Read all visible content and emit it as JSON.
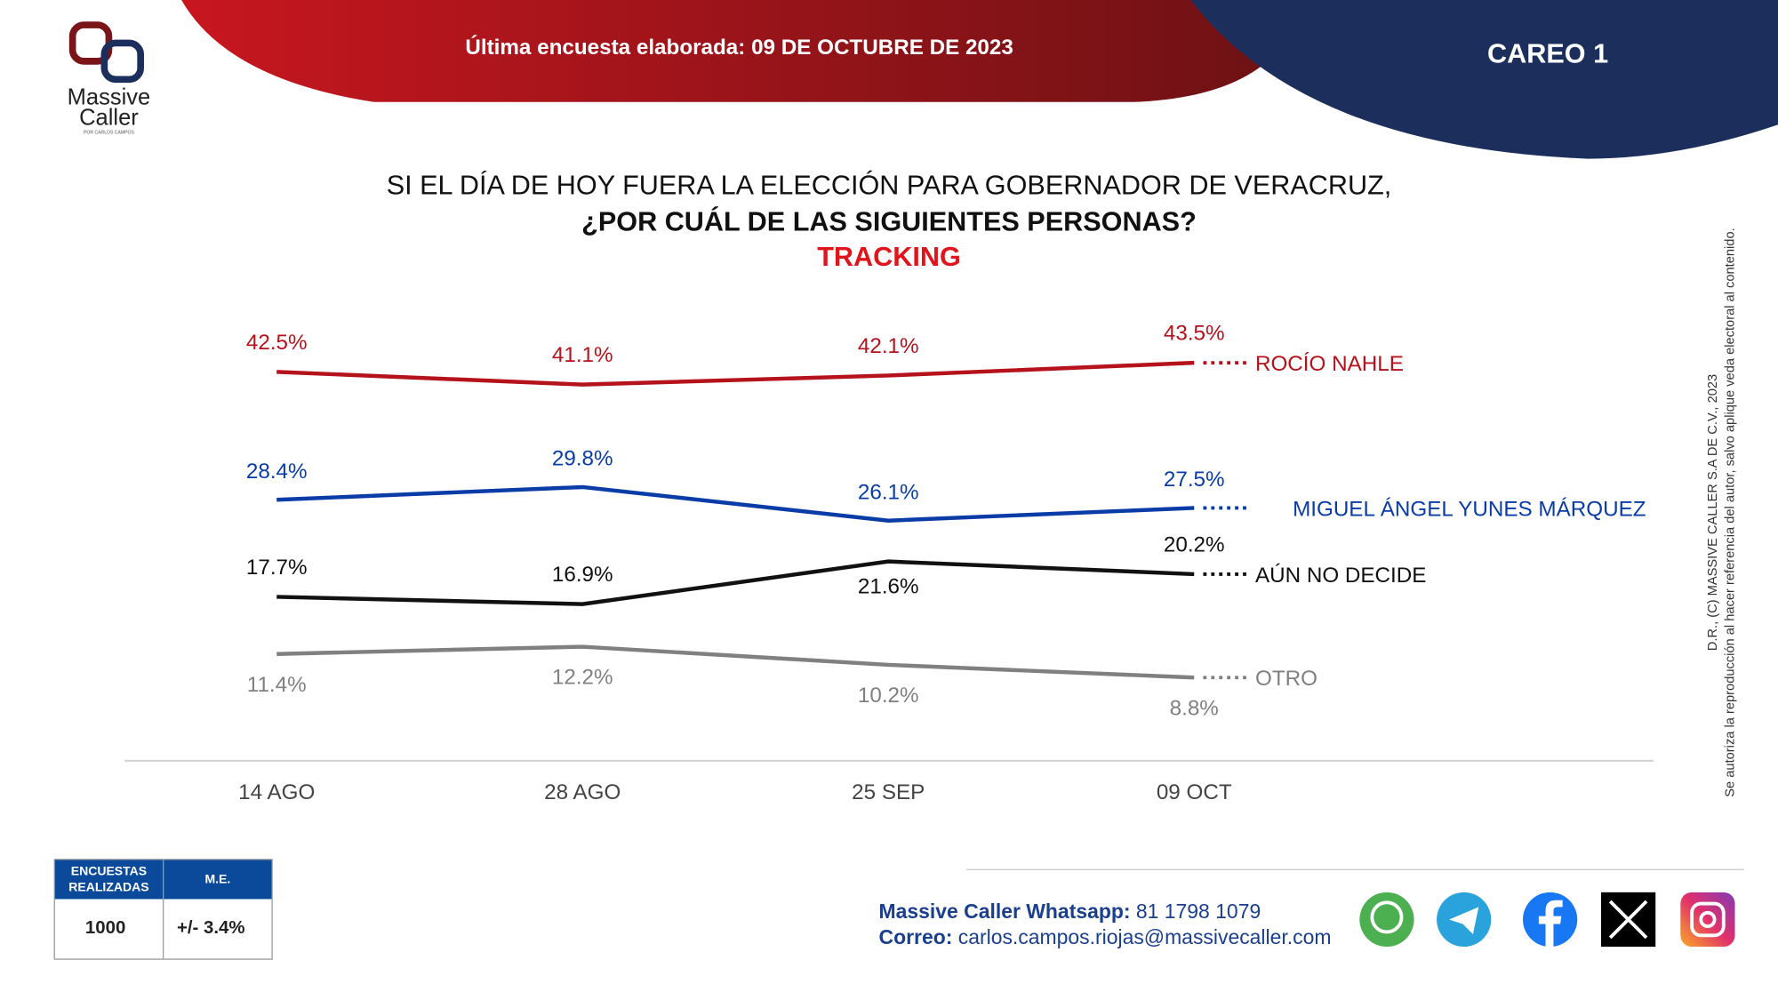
{
  "header": {
    "survey_date": "Última encuesta elaborada: 09 DE OCTUBRE DE 2023",
    "badge": "CAREO 1",
    "logo": [
      "Massive",
      "Caller",
      "POR CARLOS CAMPOS"
    ]
  },
  "chart_data": {
    "type": "line",
    "title": [
      "SI EL DÍA DE HOY FUERA LA ELECCIÓN PARA GOBERNADOR DE VERACRUZ,",
      "¿POR CUÁL DE LAS SIGUIENTES PERSONAS?"
    ],
    "subtitle": "TRACKING",
    "categories": [
      "14 AGO",
      "28 AGO",
      "25 SEP",
      "09 OCT"
    ],
    "ylim": [
      0,
      45
    ],
    "series": [
      {
        "name": "ROCÍO NAHLE",
        "color": "#b5121b",
        "values": [
          42.5,
          41.1,
          42.1,
          43.5
        ],
        "value_labels": [
          "42.5%",
          "41.1%",
          "42.1%",
          "43.5%"
        ]
      },
      {
        "name": "MIGUEL ÁNGEL YUNES MÁRQUEZ",
        "color": "#0a3ca8",
        "values": [
          28.4,
          29.8,
          26.1,
          27.5
        ],
        "value_labels": [
          "28.4%",
          "29.8%",
          "26.1%",
          "27.5%"
        ]
      },
      {
        "name": "AÚN NO DECIDE",
        "color": "#111111",
        "values": [
          17.7,
          16.9,
          21.6,
          20.2
        ],
        "value_labels": [
          "17.7%",
          "16.9%",
          "21.6%",
          "20.2%"
        ]
      },
      {
        "name": "OTRO",
        "color": "#808080",
        "values": [
          11.4,
          12.2,
          10.2,
          8.8
        ],
        "value_labels": [
          "11.4%",
          "12.2%",
          "10.2%",
          "8.8%"
        ]
      }
    ]
  },
  "table": {
    "headers": [
      [
        "ENCUESTAS",
        "REALIZADAS"
      ],
      "M.E."
    ],
    "rows": [
      [
        "1000",
        "+/- 3.4%"
      ]
    ]
  },
  "contact": {
    "whatsapp_label": "Massive Caller Whatsapp:",
    "whatsapp": "81 1798 1079",
    "email_label": "Correo:",
    "email": "carlos.campos.riojas@massivecaller.com"
  },
  "copyright": [
    "D.R., (C) MASSIVE CALLER S.A DE C.V., 2023",
    "Se autoriza la reproducción al hacer referencia del autor, salvo aplique veda electoral al contenido."
  ]
}
